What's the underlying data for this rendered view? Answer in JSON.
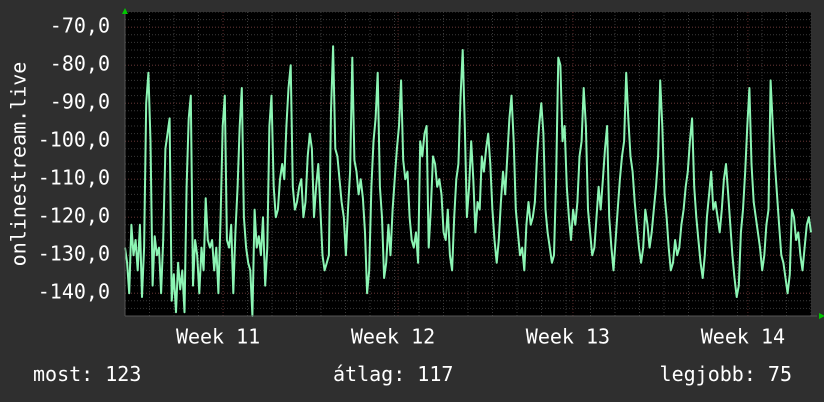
{
  "chart_data": {
    "type": "line",
    "ylabel": "onlinestream.live",
    "ylim": [
      -146,
      -66
    ],
    "yticks": [
      {
        "value": -70,
        "label": "-70,0"
      },
      {
        "value": -80,
        "label": "-80,0"
      },
      {
        "value": -90,
        "label": "-90,0"
      },
      {
        "value": -100,
        "label": "-100,0"
      },
      {
        "value": -110,
        "label": "-110,0"
      },
      {
        "value": -120,
        "label": "-120,0"
      },
      {
        "value": -130,
        "label": "-130,0"
      },
      {
        "value": -140,
        "label": "-140,0"
      }
    ],
    "xlim": [
      0,
      100
    ],
    "xticks": [
      {
        "value": 14.3,
        "label": "Week 11"
      },
      {
        "value": 39.8,
        "label": "Week 12"
      },
      {
        "value": 65.3,
        "label": "Week 13"
      },
      {
        "value": 90.8,
        "label": "Week 14"
      }
    ],
    "grid": true,
    "colors": {
      "background": "#2f2f2f",
      "plot_background": "#000000",
      "line": "#8cf5b4",
      "grid_minor": "#3a3a3a",
      "grid_major": "#5a2a2a",
      "arrow": "#00c800"
    },
    "series": [
      {
        "values": [
          -128,
          -132,
          -140,
          -122,
          -130,
          -126,
          -134,
          -122,
          -141,
          -128,
          -90,
          -82,
          -100,
          -138,
          -125,
          -130,
          -128,
          -140,
          -126,
          -102,
          -98,
          -94,
          -142,
          -135,
          -145,
          -132,
          -139,
          -134,
          -145,
          -112,
          -94,
          -88,
          -138,
          -126,
          -130,
          -140,
          -128,
          -134,
          -115,
          -126,
          -128,
          -126,
          -134,
          -128,
          -140,
          -120,
          -96,
          -88,
          -126,
          -128,
          -122,
          -140,
          -124,
          -112,
          -96,
          -86,
          -120,
          -128,
          -132,
          -134,
          -146,
          -118,
          -128,
          -125,
          -130,
          -120,
          -138,
          -128,
          -96,
          -88,
          -112,
          -120,
          -118,
          -110,
          -106,
          -110,
          -96,
          -86,
          -80,
          -112,
          -118,
          -116,
          -112,
          -110,
          -120,
          -116,
          -104,
          -98,
          -102,
          -120,
          -112,
          -106,
          -118,
          -130,
          -134,
          -132,
          -130,
          -92,
          -75,
          -102,
          -104,
          -110,
          -116,
          -120,
          -130,
          -118,
          -108,
          -78,
          -105,
          -108,
          -114,
          -110,
          -115,
          -124,
          -140,
          -134,
          -112,
          -100,
          -94,
          -82,
          -112,
          -120,
          -136,
          -132,
          -122,
          -130,
          -118,
          -110,
          -102,
          -96,
          -84,
          -105,
          -110,
          -108,
          -120,
          -126,
          -128,
          -124,
          -132,
          -100,
          -104,
          -98,
          -96,
          -128,
          -118,
          -104,
          -106,
          -112,
          -110,
          -114,
          -124,
          -126,
          -118,
          -130,
          -134,
          -120,
          -110,
          -106,
          -88,
          -76,
          -96,
          -120,
          -112,
          -100,
          -110,
          -124,
          -116,
          -118,
          -104,
          -108,
          -102,
          -98,
          -106,
          -118,
          -126,
          -132,
          -126,
          -116,
          -108,
          -114,
          -104,
          -94,
          -88,
          -100,
          -118,
          -124,
          -130,
          -128,
          -134,
          -122,
          -116,
          -122,
          -120,
          -116,
          -104,
          -96,
          -90,
          -98,
          -118,
          -124,
          -128,
          -132,
          -130,
          -110,
          -78,
          -80,
          -100,
          -96,
          -112,
          -120,
          -126,
          -118,
          -122,
          -116,
          -104,
          -100,
          -86,
          -96,
          -118,
          -124,
          -130,
          -128,
          -120,
          -112,
          -118,
          -110,
          -102,
          -96,
          -120,
          -128,
          -134,
          -126,
          -118,
          -110,
          -104,
          -100,
          -82,
          -94,
          -104,
          -108,
          -116,
          -122,
          -128,
          -132,
          -128,
          -118,
          -122,
          -128,
          -124,
          -118,
          -112,
          -104,
          -84,
          -96,
          -114,
          -120,
          -128,
          -134,
          -132,
          -126,
          -130,
          -128,
          -122,
          -118,
          -112,
          -108,
          -100,
          -94,
          -112,
          -120,
          -126,
          -132,
          -136,
          -130,
          -120,
          -114,
          -108,
          -118,
          -116,
          -120,
          -124,
          -118,
          -110,
          -106,
          -114,
          -122,
          -130,
          -136,
          -141,
          -138,
          -124,
          -118,
          -108,
          -96,
          -86,
          -106,
          -116,
          -120,
          -124,
          -128,
          -134,
          -130,
          -122,
          -118,
          -84,
          -96,
          -106,
          -114,
          -122,
          -130,
          -132,
          -136,
          -140,
          -135,
          -118,
          -120,
          -126,
          -124,
          -130,
          -134,
          -128,
          -122,
          -120,
          -124
        ]
      }
    ],
    "stats": {
      "current": "most: 123",
      "average": "átlag: 117",
      "best": "legjobb: 75"
    }
  }
}
